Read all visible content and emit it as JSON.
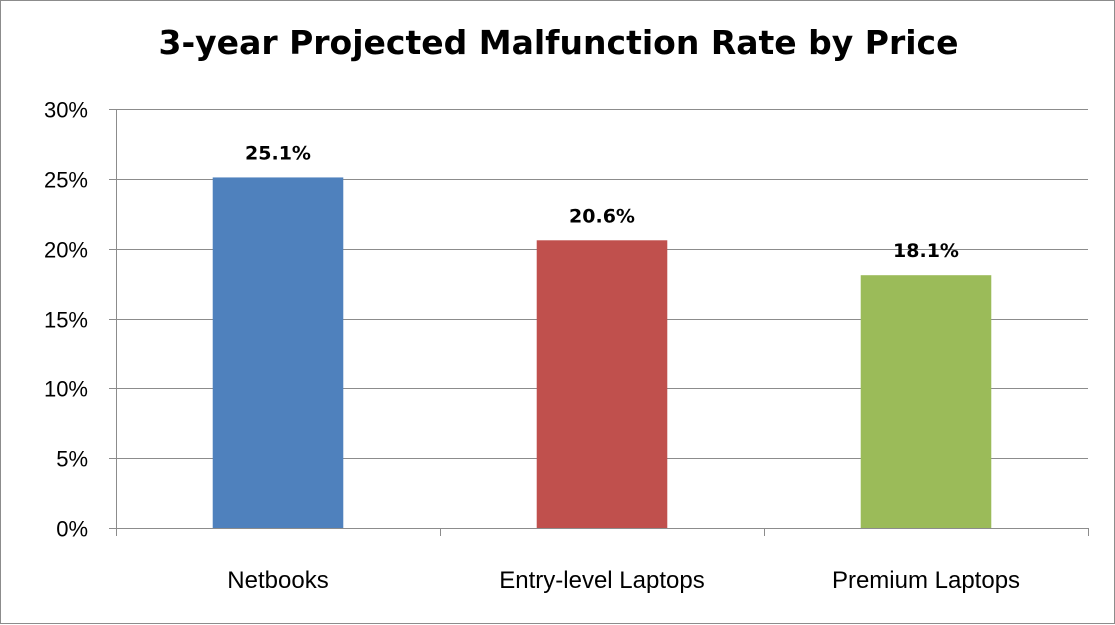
{
  "chart_data": {
    "type": "bar",
    "title": "3-year Projected Malfunction Rate by Price",
    "categories": [
      "Netbooks",
      "Entry-level Laptops",
      "Premium Laptops"
    ],
    "values": [
      25.1,
      20.6,
      18.1
    ],
    "data_labels": [
      "25.1%",
      "20.6%",
      "18.1%"
    ],
    "colors": [
      "#4f81bd",
      "#c0504d",
      "#9bbb59"
    ],
    "ylim": [
      0,
      30
    ],
    "yticks": [
      0,
      5,
      10,
      15,
      20,
      25,
      30
    ],
    "ytick_labels": [
      "0%",
      "5%",
      "10%",
      "15%",
      "20%",
      "25%",
      "30%"
    ],
    "xlabel": "",
    "ylabel": "",
    "grid": true,
    "legend": "none"
  }
}
